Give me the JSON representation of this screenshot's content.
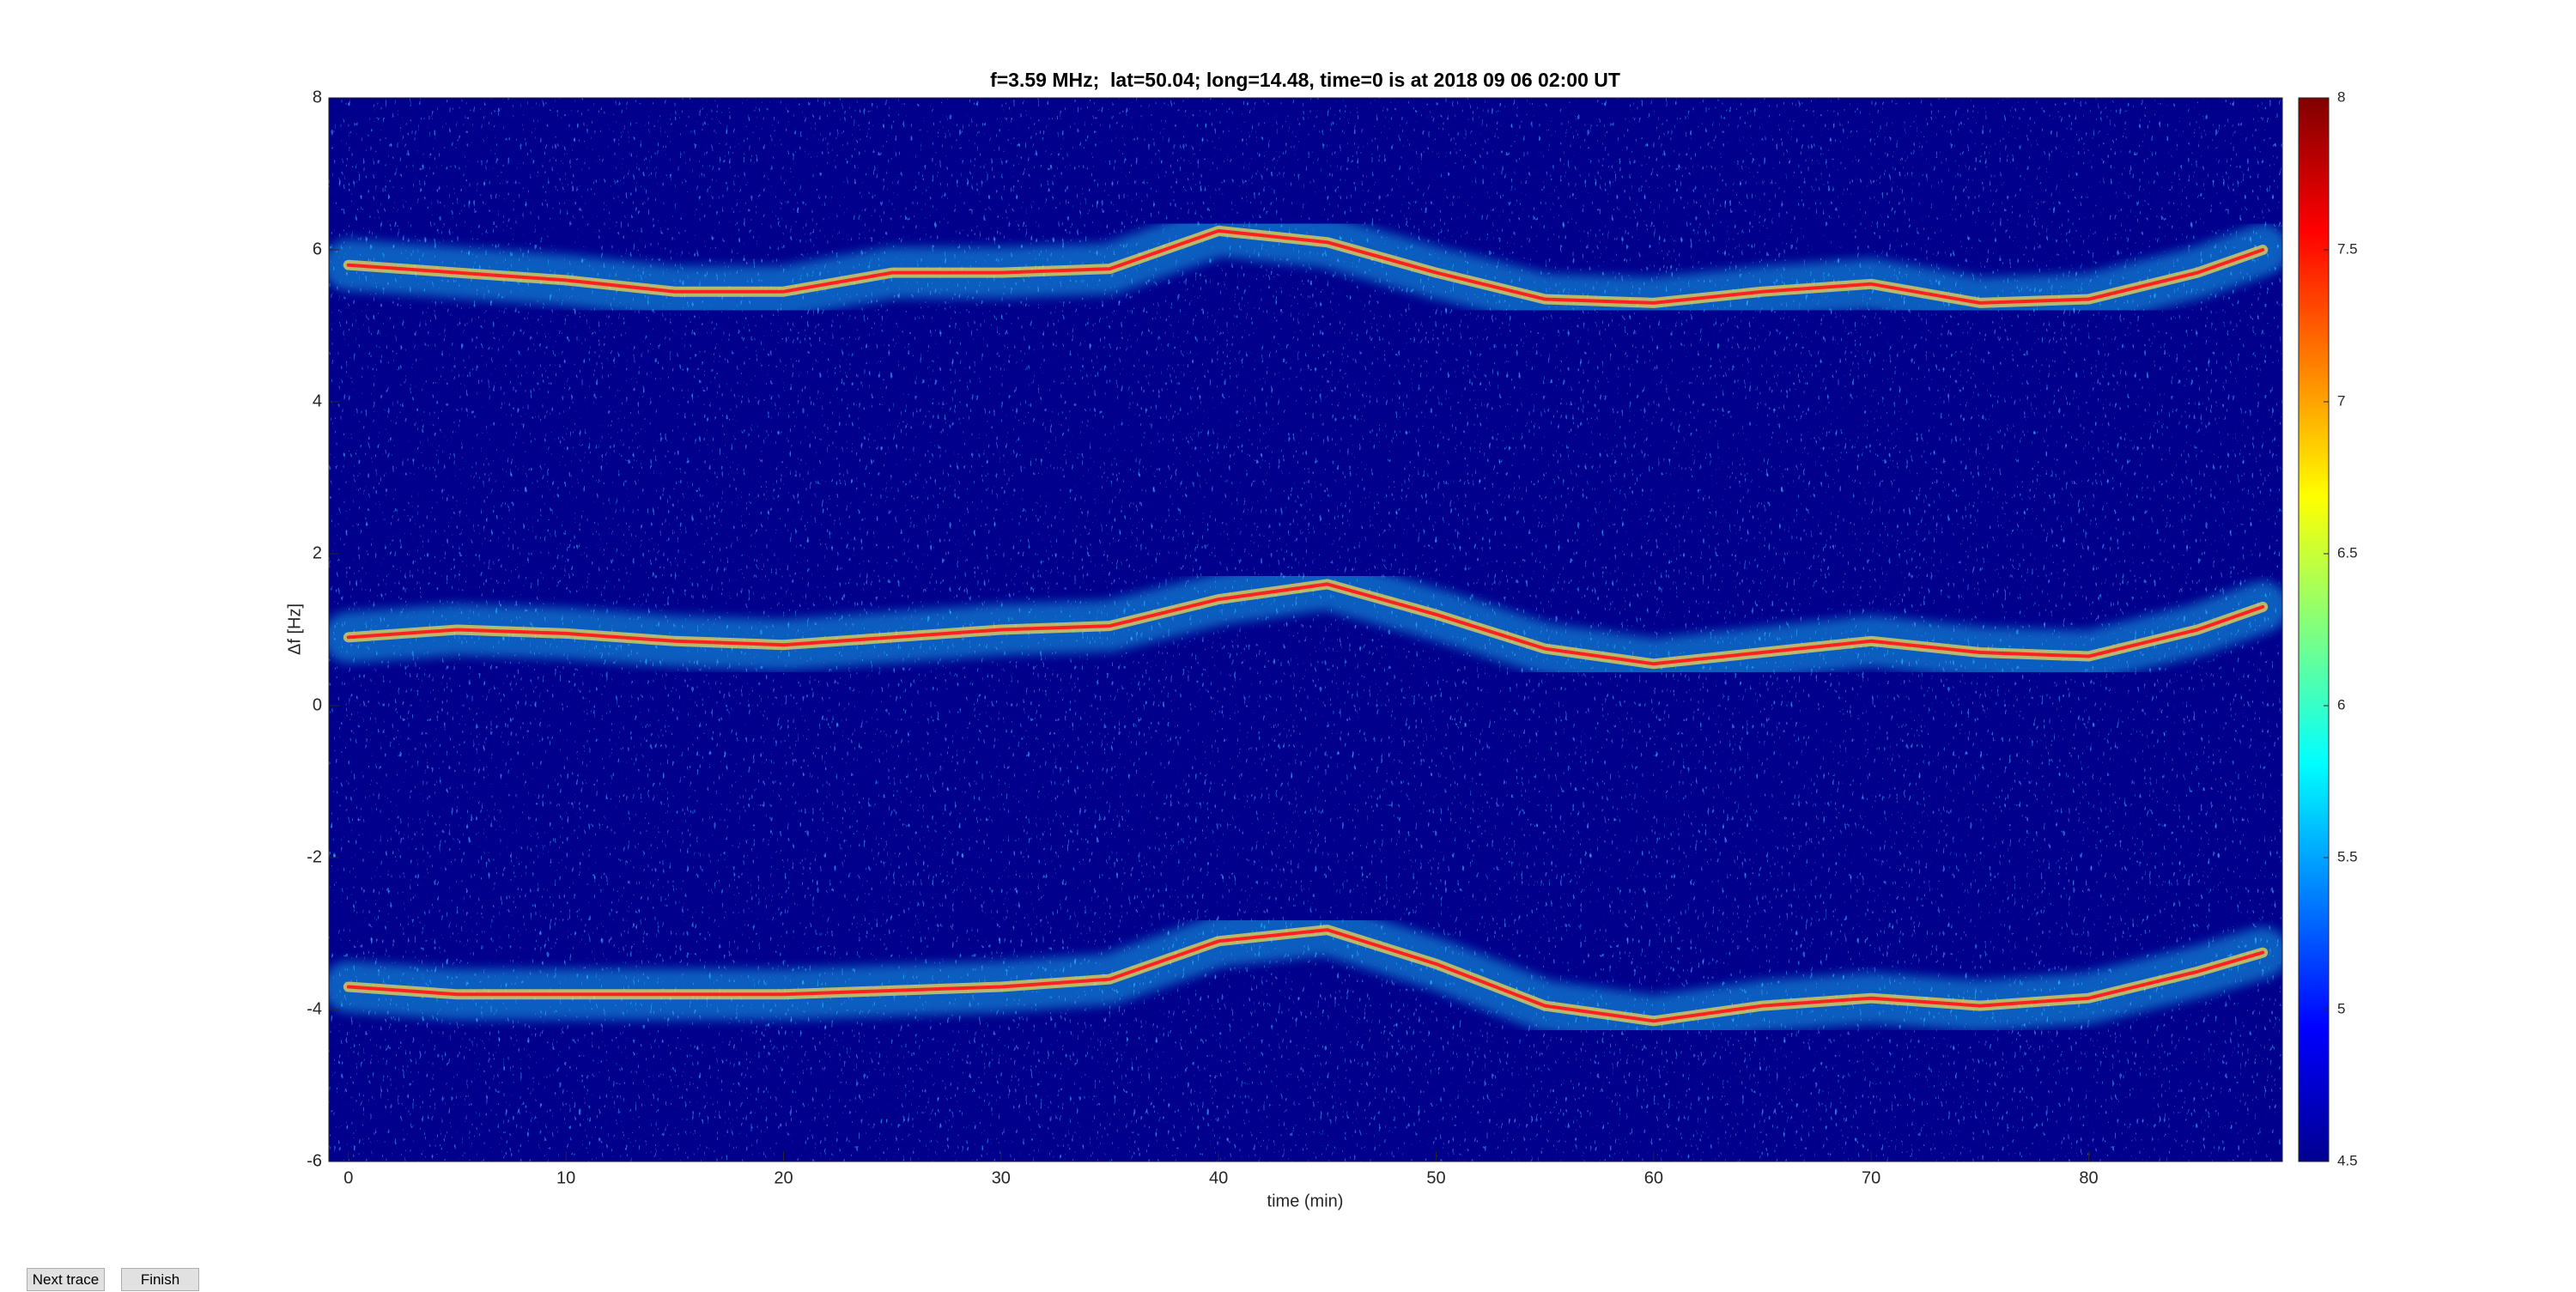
{
  "chart_data": {
    "type": "spectrogram",
    "title": "f=3.59 MHz;  lat=50.04; long=14.48, time=0 is at 2018 09 06 02:00 UT",
    "x_label": "time (min)",
    "y_label": "Δf [Hz]",
    "x": [
      0,
      5,
      10,
      15,
      20,
      25,
      30,
      35,
      40,
      45,
      50,
      55,
      60,
      65,
      70,
      75,
      80,
      85,
      88
    ],
    "series": [
      {
        "color": "#ff2020",
        "values": [
          5.8,
          5.7,
          5.6,
          5.45,
          5.45,
          5.7,
          5.7,
          5.75,
          6.25,
          6.1,
          5.7,
          5.35,
          5.3,
          5.45,
          5.55,
          5.3,
          5.35,
          5.7,
          6.0
        ]
      },
      {
        "color": "#ff2020",
        "values": [
          0.9,
          1.0,
          0.95,
          0.85,
          0.8,
          0.9,
          1.0,
          1.05,
          1.4,
          1.6,
          1.2,
          0.75,
          0.55,
          0.7,
          0.85,
          0.7,
          0.65,
          1.0,
          1.3
        ]
      },
      {
        "color": "#ff2020",
        "values": [
          -3.7,
          -3.8,
          -3.8,
          -3.8,
          -3.8,
          -3.75,
          -3.7,
          -3.6,
          -3.1,
          -2.95,
          -3.4,
          -3.95,
          -4.15,
          -3.95,
          -3.85,
          -3.95,
          -3.85,
          -3.5,
          -3.25
        ]
      }
    ],
    "xlim": [
      -0.9,
      88.9
    ],
    "xticks": [
      0,
      10,
      20,
      30,
      40,
      50,
      60,
      70,
      80
    ],
    "ylim": [
      -6,
      8
    ],
    "yticks": [
      -6,
      -4,
      -2,
      0,
      2,
      4,
      6,
      8
    ],
    "colormap": "jet",
    "clim": [
      4.5,
      8
    ],
    "cticks": [
      4.5,
      5,
      5.5,
      6,
      6.5,
      7,
      7.5,
      8
    ],
    "background_color": "#00008c"
  },
  "buttons": [
    "Next trace",
    "Finish"
  ]
}
